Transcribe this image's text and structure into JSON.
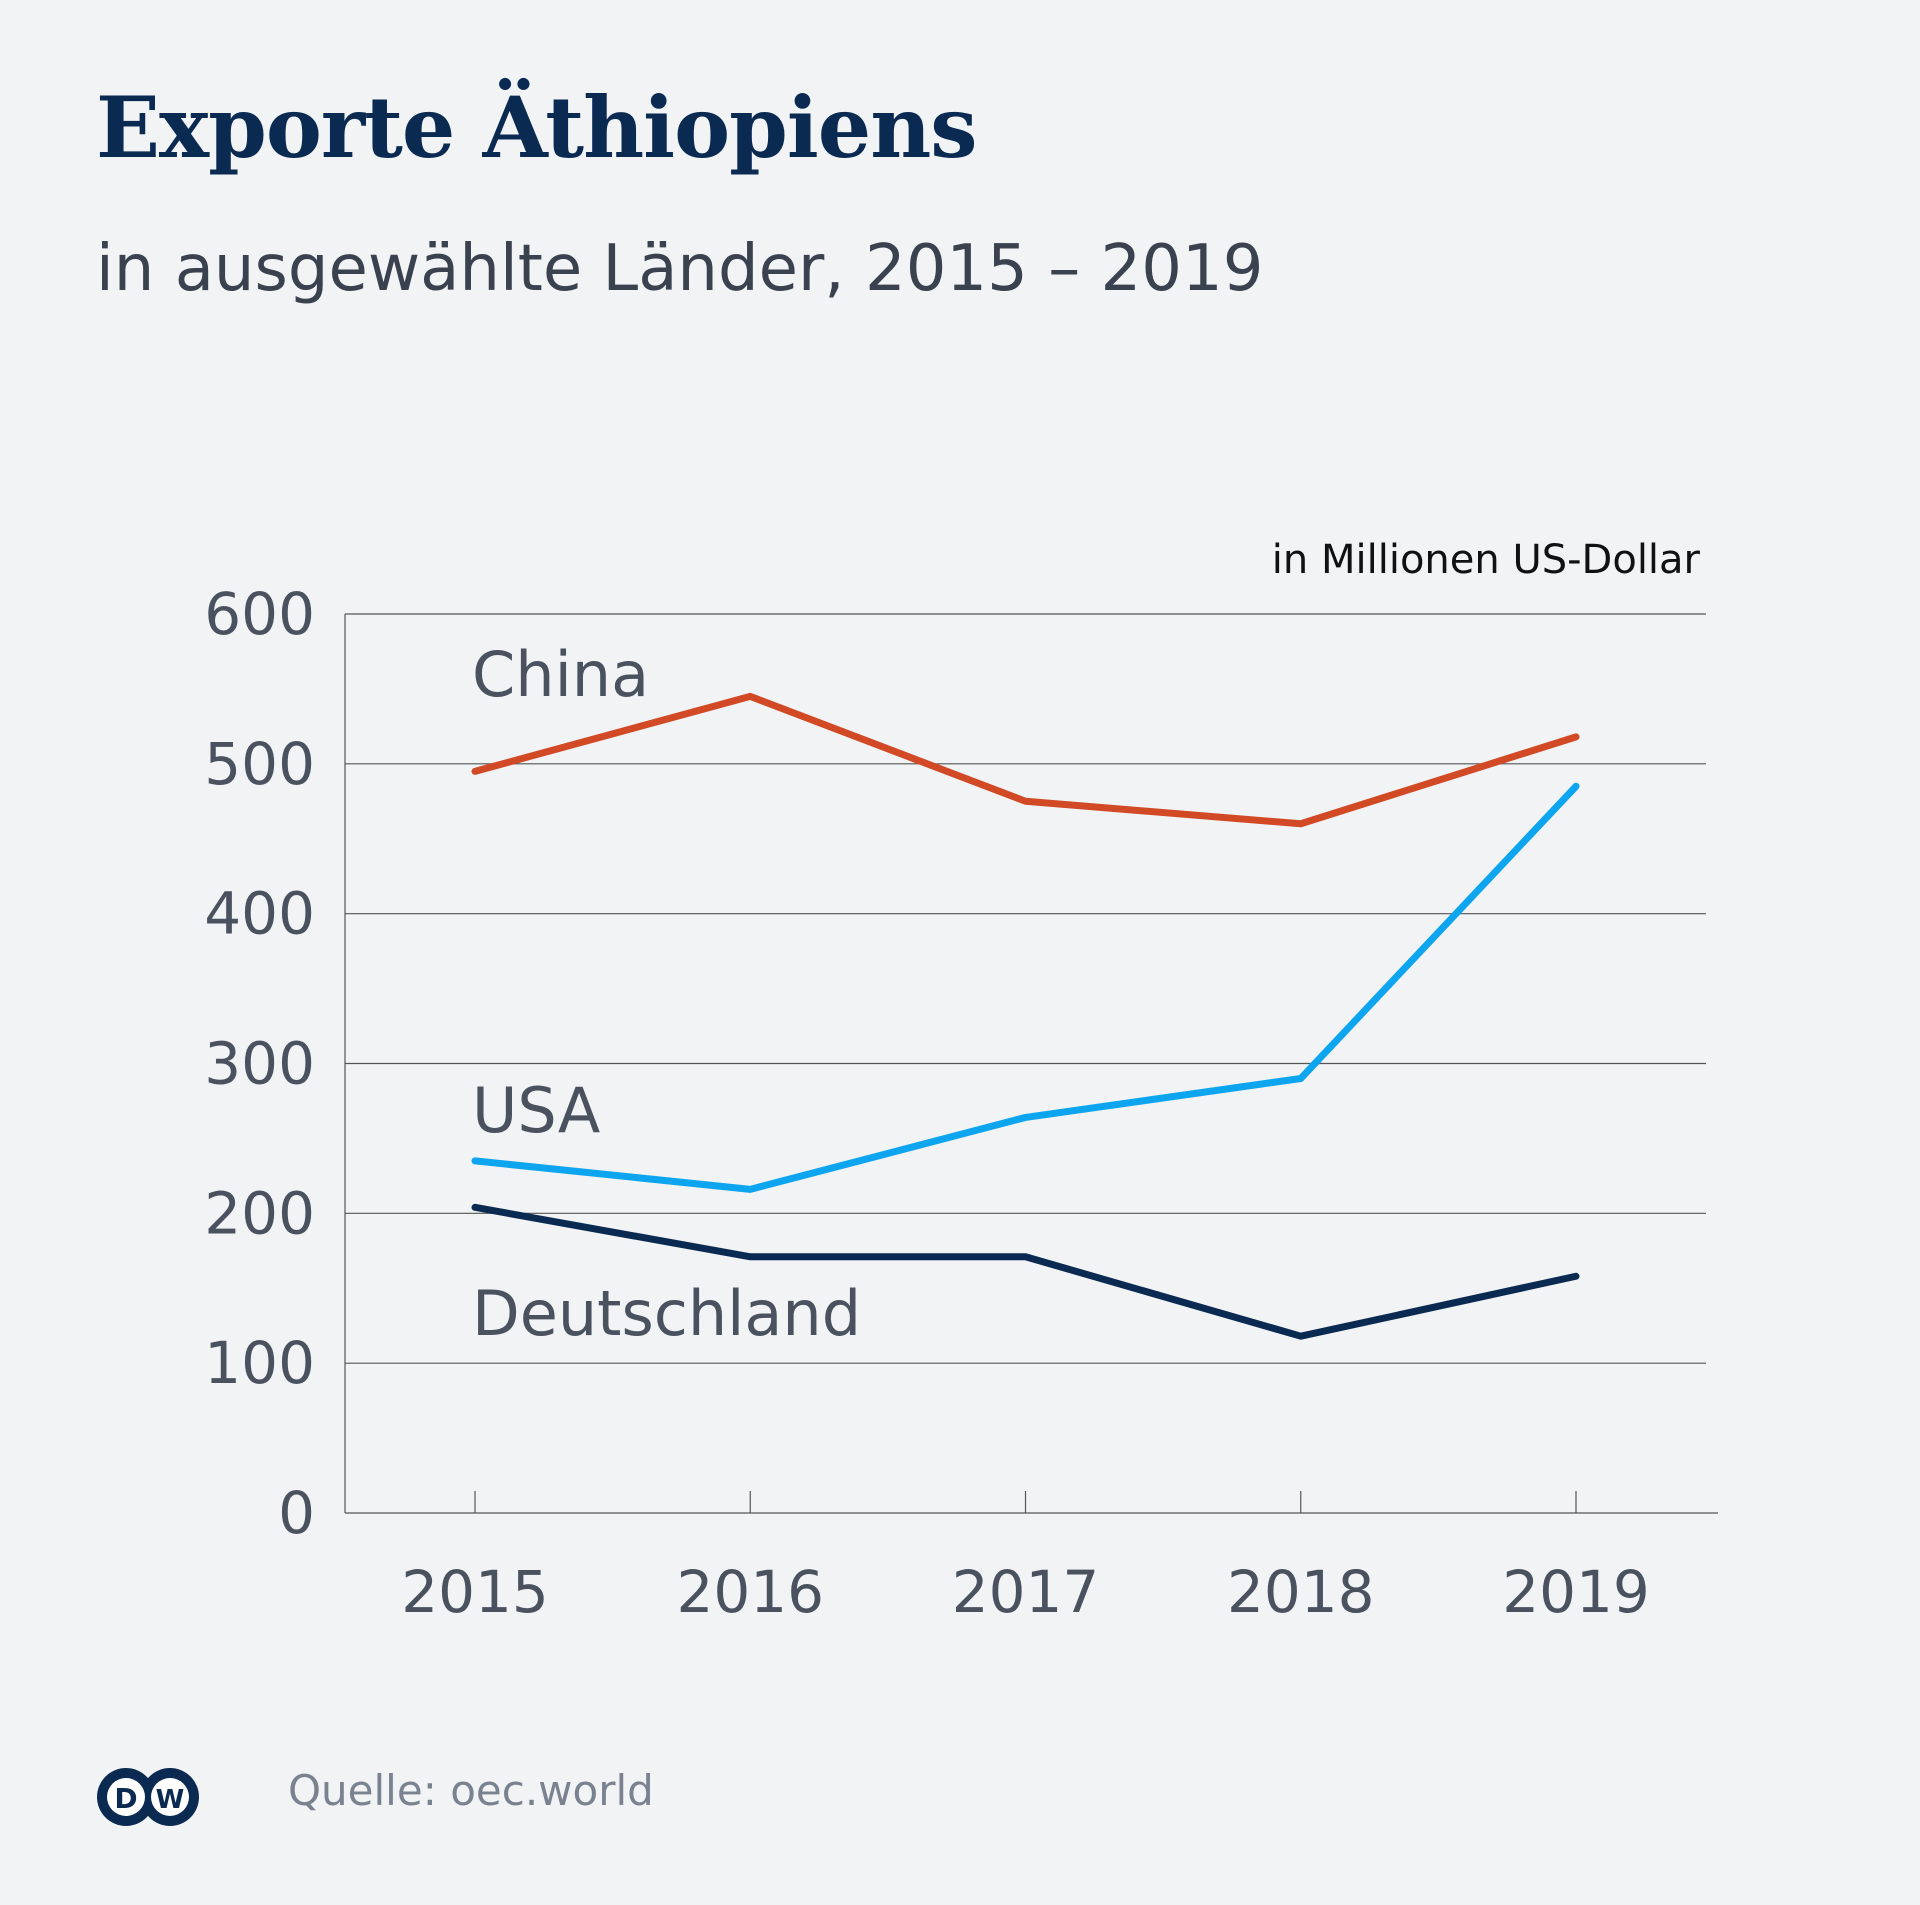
{
  "header": {
    "title": "Exporte Äthiopiens",
    "subtitle": "in ausgewählte Länder, 2015 – 2019"
  },
  "footer": {
    "source": "Quelle: oec.world",
    "logo_text": "DW"
  },
  "colors": {
    "China": "#d24a25",
    "USA": "#0ea5f0",
    "Deutschland": "#0b2a52",
    "grid": "#555555",
    "text": "#4a5260",
    "background": "#f1f3f5"
  },
  "chart_data": {
    "type": "line",
    "unit_label": "in Millionen US-Dollar",
    "x": [
      2015,
      2016,
      2017,
      2018,
      2019
    ],
    "x_tick_labels": [
      "2015",
      "2016",
      "2017",
      "2018",
      "2019"
    ],
    "y_ticks": [
      0,
      100,
      200,
      300,
      400,
      500,
      600
    ],
    "ylim": [
      0,
      600
    ],
    "grid": true,
    "legend": "inline labels",
    "series": [
      {
        "name": "China",
        "values": [
          495,
          545,
          475,
          460,
          518
        ]
      },
      {
        "name": "USA",
        "values": [
          235,
          216,
          264,
          290,
          485
        ]
      },
      {
        "name": "Deutschland",
        "values": [
          204,
          171,
          171,
          118,
          158
        ]
      }
    ]
  }
}
